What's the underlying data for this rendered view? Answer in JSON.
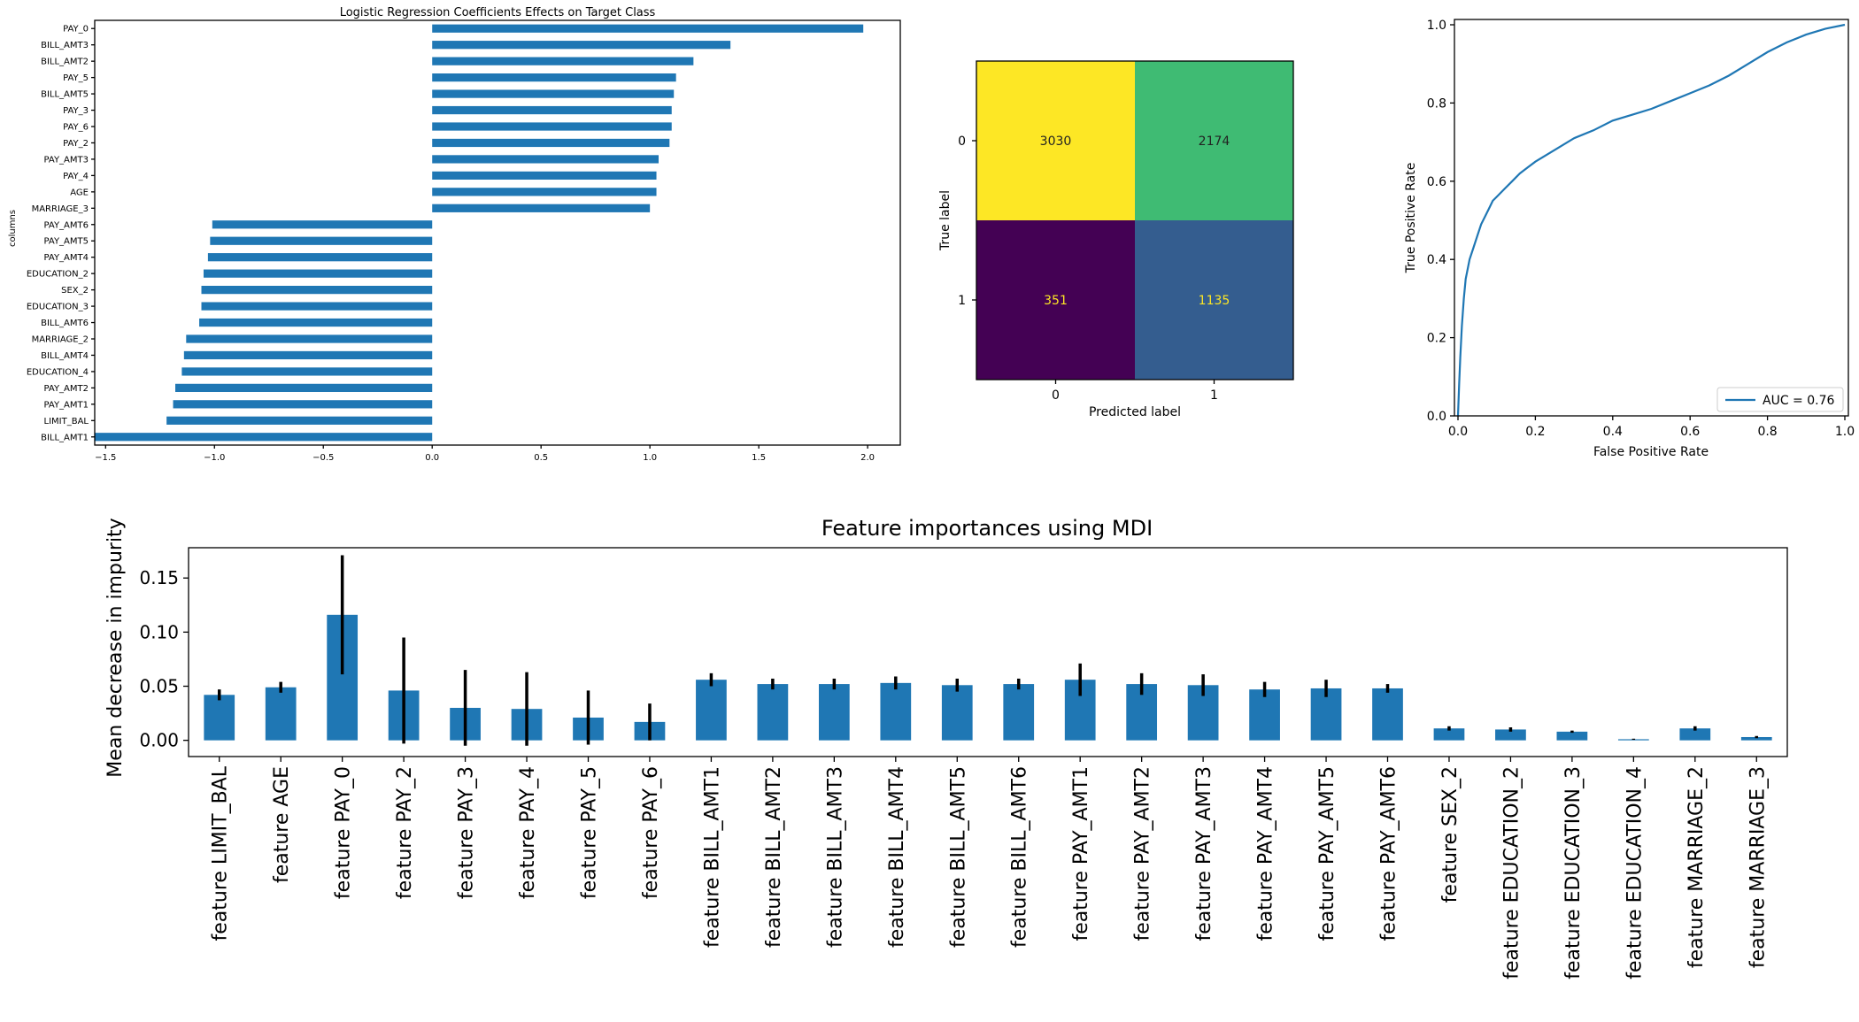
{
  "chart_data": [
    {
      "type": "bar",
      "orientation": "horizontal",
      "title": "Logistic Regression Coefficients Effects on Target Class",
      "xlabel": "",
      "ylabel": "columns",
      "xlim": [
        -1.55,
        2.15
      ],
      "xticks": [
        -1.5,
        -1.0,
        -0.5,
        0.0,
        0.5,
        1.0,
        1.5,
        2.0
      ],
      "xtick_labels": [
        "−1.5",
        "−1.0",
        "−0.5",
        "0.0",
        "0.5",
        "1.0",
        "1.5",
        "2.0"
      ],
      "color": "#1f77b4",
      "categories": [
        "PAY_0",
        "BILL_AMT3",
        "BILL_AMT2",
        "PAY_5",
        "BILL_AMT5",
        "PAY_3",
        "PAY_6",
        "PAY_2",
        "PAY_AMT3",
        "PAY_4",
        "AGE",
        "MARRIAGE_3",
        "PAY_AMT6",
        "PAY_AMT5",
        "PAY_AMT4",
        "EDUCATION_2",
        "SEX_2",
        "EDUCATION_3",
        "BILL_AMT6",
        "MARRIAGE_2",
        "BILL_AMT4",
        "EDUCATION_4",
        "PAY_AMT2",
        "PAY_AMT1",
        "LIMIT_BAL",
        "BILL_AMT1"
      ],
      "values": [
        1.98,
        1.37,
        1.2,
        1.12,
        1.11,
        1.1,
        1.1,
        1.09,
        1.04,
        1.03,
        1.03,
        1.0,
        -1.01,
        -1.02,
        -1.03,
        -1.05,
        -1.06,
        -1.06,
        -1.07,
        -1.13,
        -1.14,
        -1.15,
        -1.18,
        -1.19,
        -1.22,
        -1.55
      ]
    },
    {
      "type": "heatmap",
      "subtype": "confusion_matrix",
      "xlabel": "Predicted label",
      "ylabel": "True label",
      "x_categories": [
        "0",
        "1"
      ],
      "y_categories": [
        "0",
        "1"
      ],
      "values": [
        [
          3030,
          2174
        ],
        [
          351,
          1135
        ]
      ],
      "colormap": "viridis",
      "cell_colors": [
        [
          "#fde725",
          "#3fbb73"
        ],
        [
          "#440154",
          "#345d8f"
        ]
      ],
      "text_colors": [
        [
          "#222222",
          "#222222"
        ],
        [
          "#fde725",
          "#fde725"
        ]
      ]
    },
    {
      "type": "line",
      "subtype": "roc_curve",
      "xlabel": "False Positive Rate",
      "ylabel": "True Positive Rate",
      "xlim": [
        0,
        1
      ],
      "ylim": [
        0,
        1
      ],
      "xticks": [
        0.0,
        0.2,
        0.4,
        0.6,
        0.8,
        1.0
      ],
      "yticks": [
        0.0,
        0.2,
        0.4,
        0.6,
        0.8,
        1.0
      ],
      "legend_position": "lower-right",
      "color": "#1f77b4",
      "series": [
        {
          "name": "AUC = 0.76",
          "x": [
            0,
            0.003,
            0.006,
            0.01,
            0.015,
            0.02,
            0.03,
            0.04,
            0.05,
            0.06,
            0.07,
            0.08,
            0.09,
            0.1,
            0.12,
            0.14,
            0.16,
            0.18,
            0.2,
            0.25,
            0.3,
            0.35,
            0.4,
            0.45,
            0.5,
            0.55,
            0.6,
            0.65,
            0.7,
            0.75,
            0.8,
            0.85,
            0.9,
            0.95,
            1.0
          ],
          "y": [
            0,
            0.08,
            0.15,
            0.23,
            0.3,
            0.35,
            0.4,
            0.43,
            0.46,
            0.49,
            0.51,
            0.53,
            0.55,
            0.56,
            0.58,
            0.6,
            0.62,
            0.635,
            0.65,
            0.68,
            0.71,
            0.73,
            0.755,
            0.77,
            0.785,
            0.805,
            0.825,
            0.845,
            0.87,
            0.9,
            0.93,
            0.955,
            0.975,
            0.99,
            1.0
          ]
        }
      ]
    },
    {
      "type": "bar",
      "orientation": "vertical",
      "title": "Feature importances using MDI",
      "xlabel": "",
      "ylabel": "Mean decrease in impurity",
      "ylim": [
        -0.015,
        0.178
      ],
      "yticks": [
        0.0,
        0.05,
        0.1,
        0.15
      ],
      "ytick_labels": [
        "0.00",
        "0.05",
        "0.10",
        "0.15"
      ],
      "color": "#1f77b4",
      "categories": [
        "feature LIMIT_BAL",
        "feature AGE",
        "feature PAY_0",
        "feature PAY_2",
        "feature PAY_3",
        "feature PAY_4",
        "feature PAY_5",
        "feature PAY_6",
        "feature BILL_AMT1",
        "feature BILL_AMT2",
        "feature BILL_AMT3",
        "feature BILL_AMT4",
        "feature BILL_AMT5",
        "feature BILL_AMT6",
        "feature PAY_AMT1",
        "feature PAY_AMT2",
        "feature PAY_AMT3",
        "feature PAY_AMT4",
        "feature PAY_AMT5",
        "feature PAY_AMT6",
        "feature SEX_2",
        "feature EDUCATION_2",
        "feature EDUCATION_3",
        "feature EDUCATION_4",
        "feature MARRIAGE_2",
        "feature MARRIAGE_3"
      ],
      "values": [
        0.042,
        0.049,
        0.116,
        0.046,
        0.03,
        0.029,
        0.021,
        0.017,
        0.056,
        0.052,
        0.052,
        0.053,
        0.051,
        0.052,
        0.056,
        0.052,
        0.051,
        0.047,
        0.048,
        0.048,
        0.011,
        0.01,
        0.008,
        0.001,
        0.011,
        0.003
      ],
      "errors": [
        0.005,
        0.005,
        0.055,
        0.049,
        0.035,
        0.034,
        0.025,
        0.017,
        0.006,
        0.005,
        0.005,
        0.006,
        0.006,
        0.005,
        0.015,
        0.01,
        0.01,
        0.007,
        0.008,
        0.004,
        0.002,
        0.002,
        0.001,
        0.0005,
        0.002,
        0.001
      ]
    }
  ]
}
